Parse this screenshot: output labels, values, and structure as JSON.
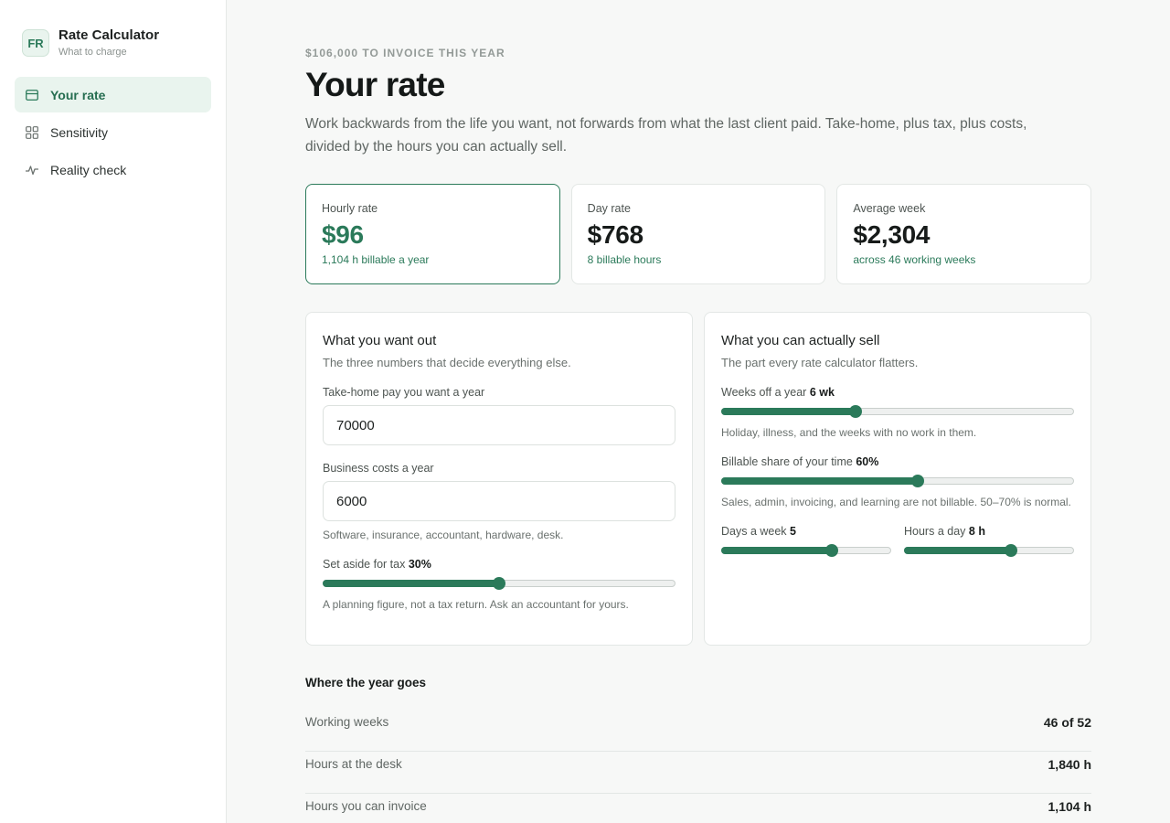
{
  "brand": {
    "initials": "FR",
    "title": "Rate Calculator",
    "subtitle": "What to charge"
  },
  "nav": [
    {
      "label": "Your rate",
      "icon": "card-icon",
      "active": true
    },
    {
      "label": "Sensitivity",
      "icon": "grid-icon",
      "active": false
    },
    {
      "label": "Reality check",
      "icon": "pulse-icon",
      "active": false
    }
  ],
  "header": {
    "kicker": "$106,000 TO INVOICE THIS YEAR",
    "title": "Your rate",
    "lede": "Work backwards from the life you want, not forwards from what the last client paid. Take-home, plus tax, plus costs, divided by the hours you can actually sell."
  },
  "stats": [
    {
      "label": "Hourly rate",
      "value": "$96",
      "note": "1,104 h billable a year"
    },
    {
      "label": "Day rate",
      "value": "$768",
      "note": "8 billable hours"
    },
    {
      "label": "Average week",
      "value": "$2,304",
      "note": "across 46 working weeks"
    }
  ],
  "want": {
    "title": "What you want out",
    "subtitle": "The three numbers that decide everything else.",
    "takehome_label": "Take-home pay you want a year",
    "takehome_value": "70000",
    "costs_label": "Business costs a year",
    "costs_value": "6000",
    "costs_hint": "Software, insurance, accountant, hardware, desk.",
    "tax_label": "Set aside for tax",
    "tax_value": "30%",
    "tax_fraction": 0.5,
    "tax_hint": "A planning figure, not a tax return. Ask an accountant for yours."
  },
  "sell": {
    "title": "What you can actually sell",
    "subtitle": "The part every rate calculator flatters.",
    "weeks_label": "Weeks off a year",
    "weeks_value": "6 wk",
    "weeks_fraction": 0.38,
    "weeks_hint": "Holiday, illness, and the weeks with no work in them.",
    "billable_label": "Billable share of your time",
    "billable_value": "60%",
    "billable_fraction": 0.556,
    "billable_hint": "Sales, admin, invoicing, and learning are not billable. 50–70% is normal.",
    "days_label": "Days a week",
    "days_value": "5",
    "days_fraction": 0.65,
    "hours_label": "Hours a day",
    "hours_value": "8 h",
    "hours_fraction": 0.63
  },
  "year": {
    "title": "Where the year goes",
    "rows": [
      {
        "label": "Working weeks",
        "value": "46 of 52"
      },
      {
        "label": "Hours at the desk",
        "value": "1,840 h"
      },
      {
        "label": "Hours you can invoice",
        "value": "1,104 h"
      }
    ]
  }
}
